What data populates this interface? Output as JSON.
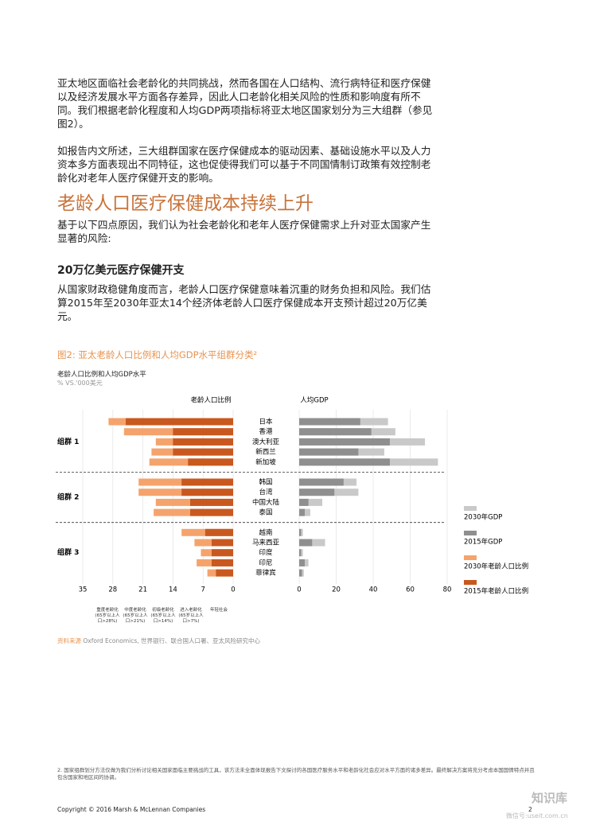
{
  "paragraphs": [
    "亚太地区面临社会老龄化的共同挑战，然而各国在人口结构、流行病特征和医疗保健以及经济发展水平方面各存差异，因此人口老龄化相关风险的性质和影响度有所不同。我们根据老龄化程度和人均GDP两项指标将亚太地区国家划分为三大组群（参见图2）。",
    "如报告内文所述，三大组群国家在医疗保健成本的驱动因素、基础设施水平以及人力资本多方面表现出不同特征，这也促使得我们可以基于不同国情制订政策有效控制老龄化对老年人医疗保健开支的影响。"
  ],
  "heading": "老龄人口医疗保健成本持续上升",
  "paragraph_3": "基于以下四点原因，我们认为社会老龄化和老年人医疗保健需求上升对亚太国家产生显著的风险:",
  "subheading": "20万亿美元医疗保健开支",
  "paragraph_4": "从国家财政稳健角度而言，老龄人口医疗保健意味着沉重的财务负担和风险。我们估算2015年至2030年亚太14个经济体老龄人口医疗保健成本开支预计超过20万亿美元。",
  "chart_data": {
    "type": "butterfly",
    "title": "图2: 亚太老龄人口比例和人均GDP水平组群分类²",
    "subtitle": "老龄人口比例和人均GDP水平",
    "unit": "% VS.'000美元",
    "left_axis_title": "老龄人口比例",
    "right_axis_title": "人均GDP",
    "groups": [
      {
        "name": "组群 1",
        "categories": [
          "日本",
          "香港",
          "澳大利亚",
          "新西兰",
          "新加坡"
        ]
      },
      {
        "name": "组群 2",
        "categories": [
          "韩国",
          "台湾",
          "中国大陆",
          "泰国"
        ]
      },
      {
        "name": "组群 3",
        "categories": [
          "越南",
          "马来西亚",
          "印度",
          "印尼",
          "菲律宾"
        ]
      }
    ],
    "series": [
      {
        "name": "2030年老龄人口比例",
        "color": "#f5a36c",
        "axis": "left",
        "values": [
          29,
          25.4,
          18,
          19,
          19.5,
          22,
          22,
          18,
          18.5,
          12,
          9,
          7.5,
          8.5,
          6
        ]
      },
      {
        "name": "2015年老龄人口比例",
        "color": "#c9581f",
        "axis": "left",
        "values": [
          25,
          14,
          14,
          14,
          10.5,
          12,
          12,
          10,
          10,
          6.5,
          5,
          5,
          5,
          4
        ]
      },
      {
        "name": "2030年GDP",
        "color": "#c9c9c9",
        "axis": "right",
        "values": [
          48,
          52,
          68,
          46,
          75,
          31,
          32,
          12.5,
          6,
          2,
          14,
          2,
          5,
          2.5
        ]
      },
      {
        "name": "2015年GDP",
        "color": "#8f8f8f",
        "axis": "right",
        "values": [
          33,
          39,
          49,
          32,
          49,
          24,
          19,
          5,
          3,
          1,
          7,
          1,
          3,
          1.5
        ]
      }
    ],
    "xlim": [
      0,
      35
    ],
    "xticks": [
      35,
      28,
      21,
      14,
      7,
      0
    ],
    "x2lim": [
      0,
      80
    ],
    "x2ticks": [
      0,
      20,
      40,
      60,
      80
    ],
    "stage_labels": [
      "重度老龄化 (65岁以上人口>28%)",
      "中度老龄化 (65岁以上人口>21%)",
      "初级老龄化 (65岁以上人口>14%)",
      "进入老龄化 (65岁以上人口>7%)",
      "年轻社会"
    ],
    "grid": true
  },
  "source_label": "资料来源",
  "source_text": "Oxford Economics, 世界银行、联合国人口署、亚太风险研究中心",
  "footnote": "2.  国家组群划分方法仅做为我们分析讨论相关国家面临主要挑战的工具，该方法未全面体现报告下文探讨的各国医疗服务水平和老龄化社会应对水平方面的诸多差异。最终解决方案将充分考虑本国国情特点并且包含国家和地区间的协调。",
  "copyright": "Copyright © 2016 Marsh & McLennan Companies",
  "page_number": "2",
  "watermark": [
    "知识库",
    "微信号:useit.com.cn"
  ]
}
